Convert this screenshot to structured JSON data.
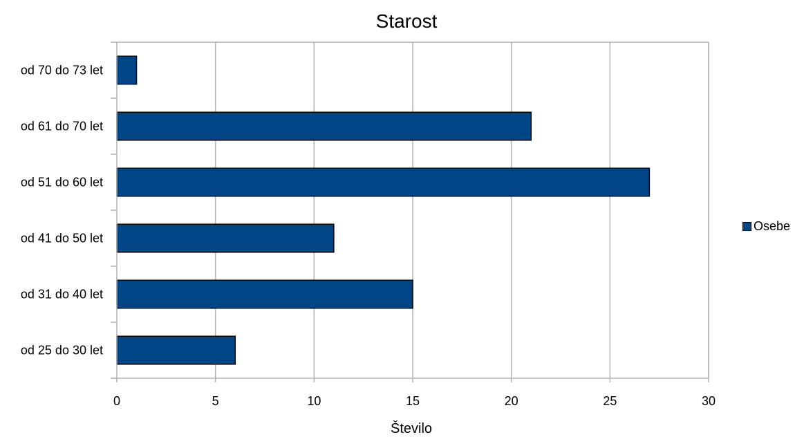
{
  "chart_data": {
    "type": "bar",
    "orientation": "horizontal",
    "title": "Starost",
    "xlabel": "Število",
    "ylabel": "",
    "categories": [
      "od 70 do 73 let",
      "od 61 do 70 let",
      "od 51 do 60 let",
      "od 41 do 50 let",
      "od 31 do 40 let",
      "od 25 do 30 let"
    ],
    "series": [
      {
        "name": "Osebe",
        "values": [
          1,
          21,
          27,
          11,
          15,
          6
        ],
        "color": "#004586"
      }
    ],
    "xlim": [
      0,
      30
    ],
    "xticks": [
      "0",
      "5",
      "10",
      "15",
      "20",
      "25",
      "30"
    ],
    "grid": "vertical",
    "legend_position": "right"
  }
}
